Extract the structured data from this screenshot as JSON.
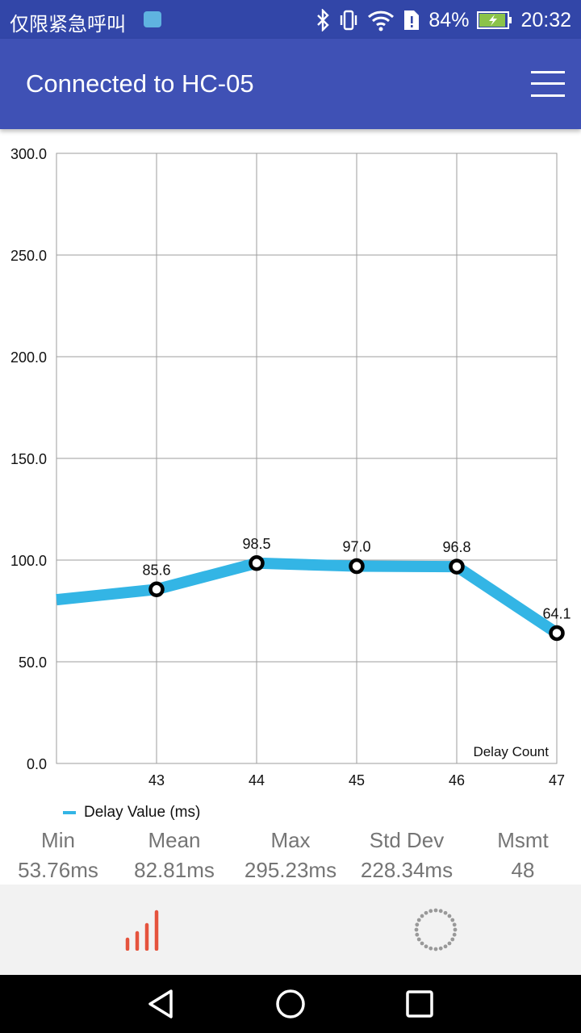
{
  "status_bar": {
    "carrier": "仅限紧急呼叫",
    "battery": "84%",
    "time": "20:32",
    "icons": [
      "android-notification-icon",
      "bluetooth-icon",
      "vibrate-icon",
      "wifi-icon",
      "sim-alert-icon",
      "battery-charging-icon"
    ]
  },
  "app_bar": {
    "title": "Connected to HC-05",
    "menu_icon": "hamburger-menu-icon"
  },
  "chart_data": {
    "type": "line",
    "y_ticks": [
      "0.0",
      "50.0",
      "100.0",
      "150.0",
      "200.0",
      "250.0",
      "300.0"
    ],
    "ylim": [
      0,
      300
    ],
    "x_ticks": [
      "43",
      "44",
      "45",
      "46",
      "47"
    ],
    "xlim": [
      42,
      47
    ],
    "xlabel": "Delay Count",
    "series": [
      {
        "name": "Delay Value (ms)",
        "color": "#33b5e5",
        "points": [
          {
            "x": 42,
            "y": 80.5,
            "label": ""
          },
          {
            "x": 43,
            "y": 85.6,
            "label": "85.6"
          },
          {
            "x": 44,
            "y": 98.5,
            "label": "98.5"
          },
          {
            "x": 45,
            "y": 97.0,
            "label": "97.0"
          },
          {
            "x": 46,
            "y": 96.8,
            "label": "96.8"
          },
          {
            "x": 47,
            "y": 64.1,
            "label": "64.1"
          }
        ]
      }
    ],
    "grid": true
  },
  "legend": {
    "label": "Delay Value (ms)"
  },
  "stats": [
    {
      "label": "Min",
      "value": "53.76ms"
    },
    {
      "label": "Mean",
      "value": "82.81ms"
    },
    {
      "label": "Max",
      "value": "295.23ms"
    },
    {
      "label": "Std Dev",
      "value": "228.34ms"
    },
    {
      "label": "Msmt",
      "value": "48"
    }
  ],
  "bottom_tabs": [
    {
      "icon": "bar-chart-icon",
      "color": "#e5533d"
    },
    {
      "icon": "loading-spinner-icon",
      "color": "#999999"
    }
  ],
  "nav_bar": {
    "icons": [
      "back-icon",
      "home-icon",
      "recents-icon"
    ]
  }
}
